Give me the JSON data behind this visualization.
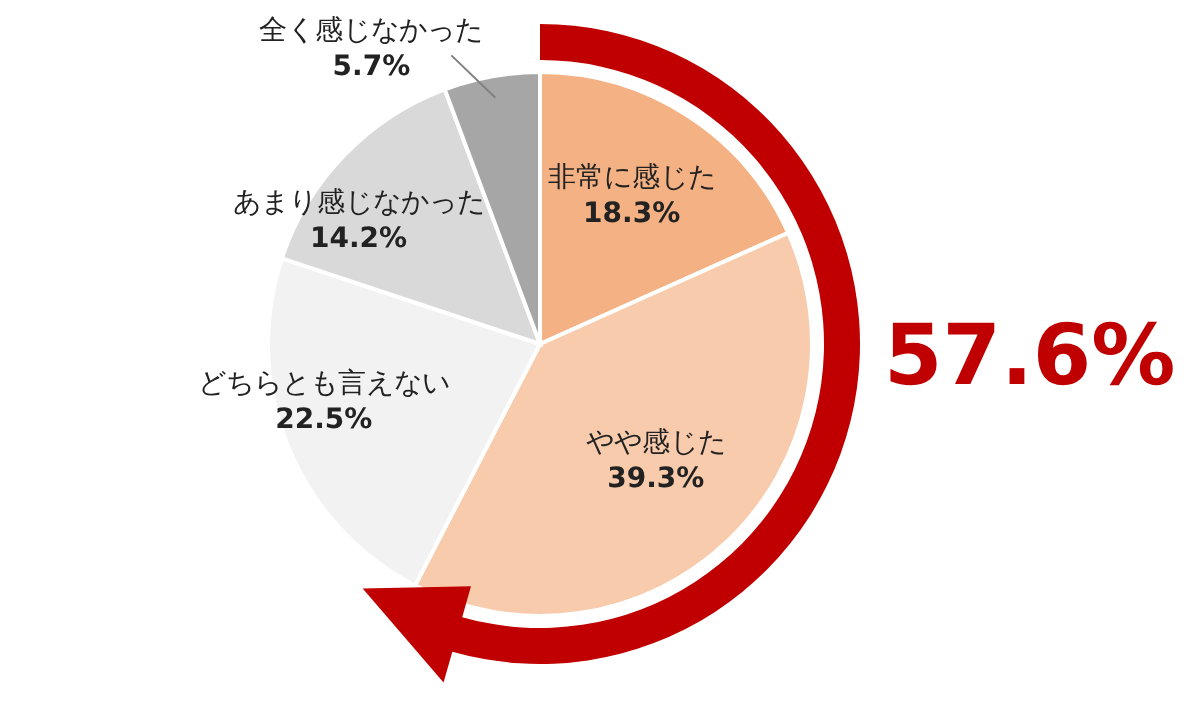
{
  "chart_data": {
    "type": "pie",
    "categories": [
      "非常に感じた",
      "やや感じた",
      "どちらとも言えない",
      "あまり感じなかった",
      "全く感じなかった"
    ],
    "values": [
      18.3,
      39.3,
      22.5,
      14.2,
      5.7
    ],
    "value_labels": [
      "18.3%",
      "39.3%",
      "22.5%",
      "14.2%",
      "5.7%"
    ],
    "colors": [
      "#f4b183",
      "#f8cbad",
      "#f2f2f2",
      "#d9d9d9",
      "#a6a6a6"
    ],
    "annotations": [
      "57.6%"
    ]
  }
}
